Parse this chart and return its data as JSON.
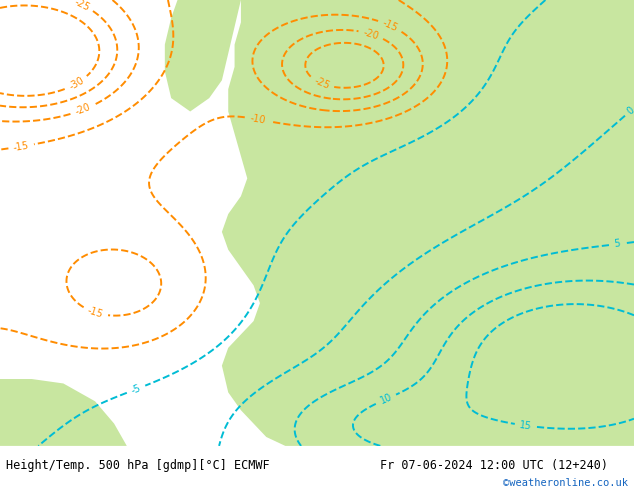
{
  "title_left": "Height/Temp. 500 hPa [gdmp][°C] ECMWF",
  "title_right": "Fr 07-06-2024 12:00 UTC (12+240)",
  "watermark": "©weatheronline.co.uk",
  "bg_color_land": "#c8e6a0",
  "bg_color_sea": "#c8c8c8",
  "bottom_bar_color": "#ffffff",
  "contour_color_black": "#000000",
  "contour_color_orange": "#ff8c00",
  "contour_color_cyan": "#00bcd4",
  "text_color_bottom": "#000000",
  "watermark_color": "#1565c0",
  "fig_width": 6.34,
  "fig_height": 4.9,
  "dpi": 100
}
